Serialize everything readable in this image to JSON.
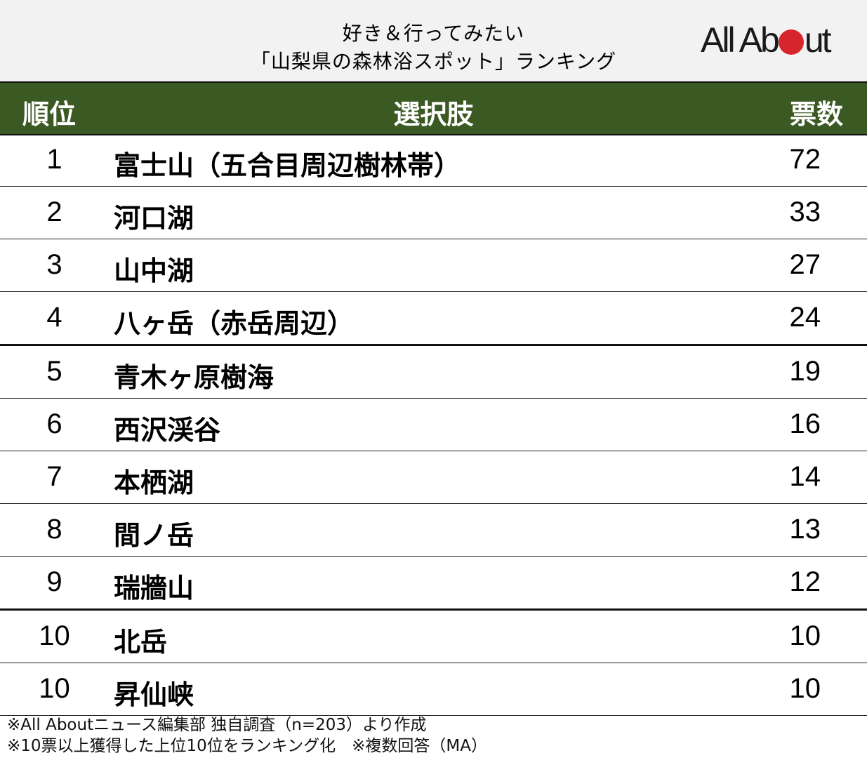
{
  "title": {
    "line1": "好き＆行ってみたい",
    "line2": "「山梨県の森林浴スポット」ランキング"
  },
  "logo": {
    "text_before": "All Ab",
    "text_after": "ut",
    "dot_color": "#d7262b"
  },
  "table": {
    "header_color": "#3b5a23",
    "columns": {
      "rank": "順位",
      "choice": "選択肢",
      "votes": "票数"
    },
    "rows": [
      {
        "rank": "1",
        "name": "富士山（五合目周辺樹林帯）",
        "votes": "72"
      },
      {
        "rank": "2",
        "name": "河口湖",
        "votes": "33"
      },
      {
        "rank": "3",
        "name": "山中湖",
        "votes": "27"
      },
      {
        "rank": "4",
        "name": "八ヶ岳（赤岳周辺）",
        "votes": "24"
      },
      {
        "rank": "5",
        "name": "青木ヶ原樹海",
        "votes": "19"
      },
      {
        "rank": "6",
        "name": "西沢渓谷",
        "votes": "16"
      },
      {
        "rank": "7",
        "name": "本栖湖",
        "votes": "14"
      },
      {
        "rank": "8",
        "name": "間ノ岳",
        "votes": "13"
      },
      {
        "rank": "9",
        "name": "瑞牆山",
        "votes": "12"
      },
      {
        "rank": "10",
        "name": "北岳",
        "votes": "10"
      },
      {
        "rank": "10",
        "name": "昇仙峡",
        "votes": "10"
      }
    ]
  },
  "footer": {
    "note1": "※All Aboutニュース編集部 独自調査（n=203）より作成",
    "note2": "※10票以上獲得した上位10位をランキング化　※複数回答（MA）"
  }
}
